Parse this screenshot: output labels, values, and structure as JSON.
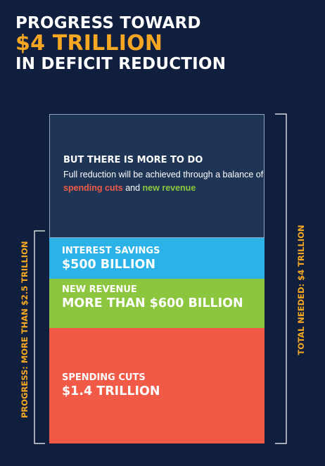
{
  "title": {
    "line1": "PROGRESS TOWARD",
    "line2": "$4 TRILLION",
    "line3": "IN DEFICIT REDUCTION"
  },
  "segments": {
    "remaining": {
      "title": "BUT THERE IS MORE TO DO",
      "desc_before": "Full reduction will be achieved through a balance of ",
      "desc_red": "spending cuts",
      "desc_mid": " and ",
      "desc_green": "new revenue"
    },
    "interest": {
      "label": "INTEREST SAVINGS",
      "value": "$500 BILLION"
    },
    "revenue": {
      "label": "NEW REVENUE",
      "value": "MORE THAN $600 BILLION"
    },
    "spending": {
      "label": "SPENDING CUTS",
      "value": "$1.4 TRILLION"
    }
  },
  "brackets": {
    "progress": "PROGRESS: MORE THAN $2.5 TRILLION",
    "total": "TOTAL NEEDED: $4 TRILLION"
  },
  "colors": {
    "background": "#0f1f3d",
    "accent": "#f5a623",
    "remaining": "#1f3556",
    "interest": "#2bb3e8",
    "revenue": "#8cc63e",
    "spending": "#f15a46"
  },
  "chart_data": {
    "type": "bar",
    "stacked": true,
    "unit": "trillion dollars",
    "total": 4.0,
    "series": [
      {
        "name": "SPENDING CUTS",
        "value": 1.4
      },
      {
        "name": "NEW REVENUE",
        "value": 0.6
      },
      {
        "name": "INTEREST SAVINGS",
        "value": 0.5
      },
      {
        "name": "BUT THERE IS MORE TO DO",
        "value": 1.5
      }
    ],
    "annotations": [
      "PROGRESS: MORE THAN $2.5 TRILLION",
      "TOTAL NEEDED: $4 TRILLION"
    ]
  }
}
